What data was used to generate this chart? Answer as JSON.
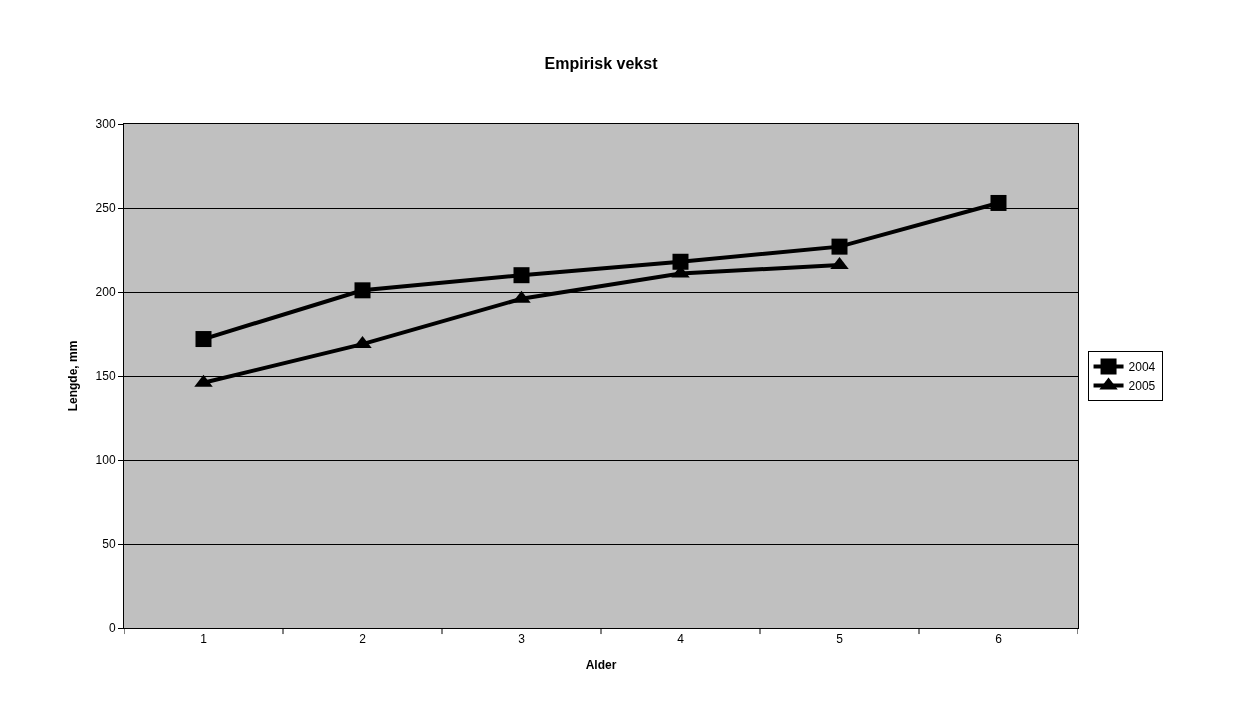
{
  "chart_data": {
    "type": "line",
    "title": "Empirisk vekst",
    "xlabel": "Alder",
    "ylabel": "Lengde, mm",
    "categories": [
      "1",
      "2",
      "3",
      "4",
      "5",
      "6"
    ],
    "series": [
      {
        "name": "2004",
        "color": "#000000",
        "marker": "square",
        "values": [
          172,
          201,
          210,
          218,
          227,
          253
        ]
      },
      {
        "name": "2005",
        "color": "#000000",
        "marker": "triangle",
        "values": [
          146,
          169,
          196,
          211,
          216,
          null
        ]
      }
    ],
    "ylim": [
      0,
      300
    ],
    "yticks": [
      0,
      50,
      100,
      150,
      200,
      250,
      300
    ],
    "grid": "y",
    "legend": "right",
    "line_style": "solid"
  }
}
